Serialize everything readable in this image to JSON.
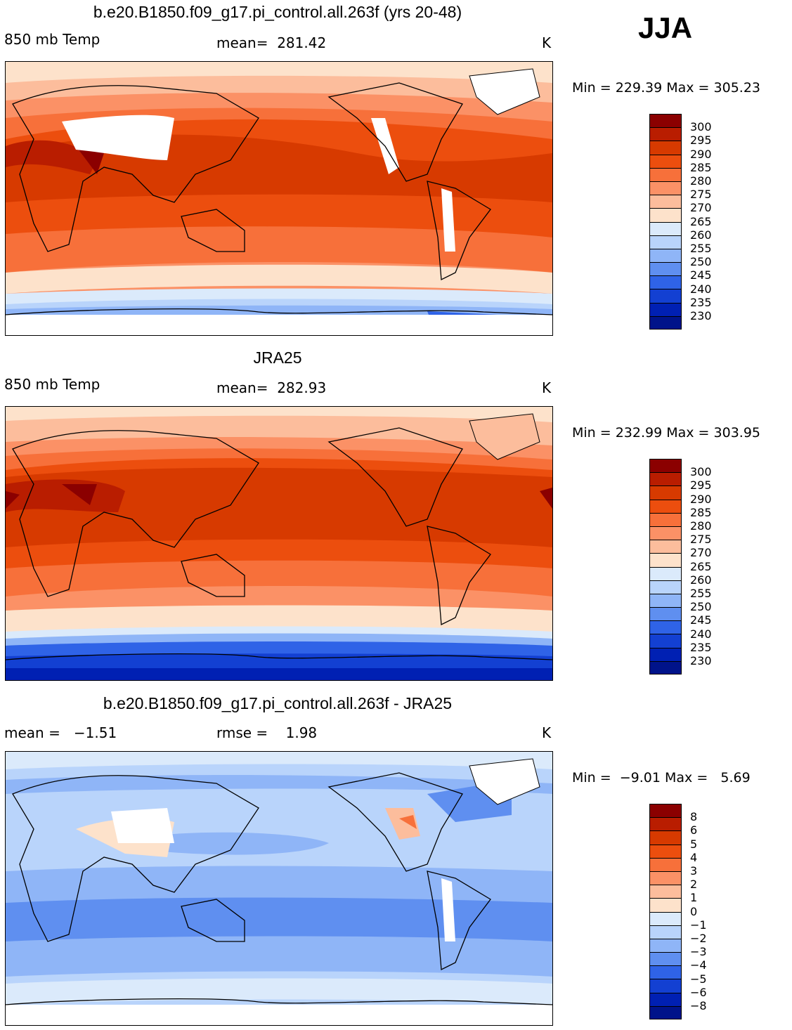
{
  "season": "JJA",
  "panels": [
    {
      "id": "model",
      "title": "b.e20.B1850.f09_g17.pi_control.all.263f (yrs 20-48)",
      "left_label": "850 mb Temp",
      "center_label": "mean=  281.42",
      "unit": "K",
      "minmax": "Min = 229.39 Max = 305.23",
      "levels": [
        "300",
        "295",
        "290",
        "285",
        "280",
        "275",
        "270",
        "265",
        "260",
        "255",
        "250",
        "245",
        "240",
        "235",
        "230"
      ],
      "colors": [
        "#8b0000",
        "#b91d00",
        "#d73a00",
        "#ec4e0e",
        "#f7703a",
        "#fb9166",
        "#fcbd9c",
        "#fde2cb",
        "#dbeafb",
        "#b9d4fb",
        "#8fb5f7",
        "#5f8ff0",
        "#2f63e7",
        "#1340d2",
        "#0020b3",
        "#00138a"
      ]
    },
    {
      "id": "obs",
      "title": "JRA25",
      "left_label": "850 mb Temp",
      "center_label": "mean=  282.93",
      "unit": "K",
      "minmax": "Min = 232.99 Max = 303.95",
      "levels": [
        "300",
        "295",
        "290",
        "285",
        "280",
        "275",
        "270",
        "265",
        "260",
        "255",
        "250",
        "245",
        "240",
        "235",
        "230"
      ],
      "colors": [
        "#8b0000",
        "#b91d00",
        "#d73a00",
        "#ec4e0e",
        "#f7703a",
        "#fb9166",
        "#fcbd9c",
        "#fde2cb",
        "#dbeafb",
        "#b9d4fb",
        "#8fb5f7",
        "#5f8ff0",
        "#2f63e7",
        "#1340d2",
        "#0020b3",
        "#00138a"
      ]
    },
    {
      "id": "diff",
      "title": "b.e20.B1850.f09_g17.pi_control.all.263f - JRA25",
      "left_label": "mean =   −1.51",
      "center_label": "rmse =    1.98",
      "unit": "K",
      "minmax": "Min =  −9.01 Max =   5.69",
      "levels": [
        "8",
        "6",
        "5",
        "4",
        "3",
        "2",
        "1",
        "0",
        "−1",
        "−2",
        "−3",
        "−4",
        "−5",
        "−6",
        "−8"
      ],
      "colors": [
        "#8b0000",
        "#b91d00",
        "#d73a00",
        "#ec4e0e",
        "#f7703a",
        "#fb9166",
        "#fcbd9c",
        "#fde2cb",
        "#dbeafb",
        "#b9d4fb",
        "#8fb5f7",
        "#5f8ff0",
        "#2f63e7",
        "#1340d2",
        "#0020b3",
        "#00138a"
      ]
    }
  ]
}
